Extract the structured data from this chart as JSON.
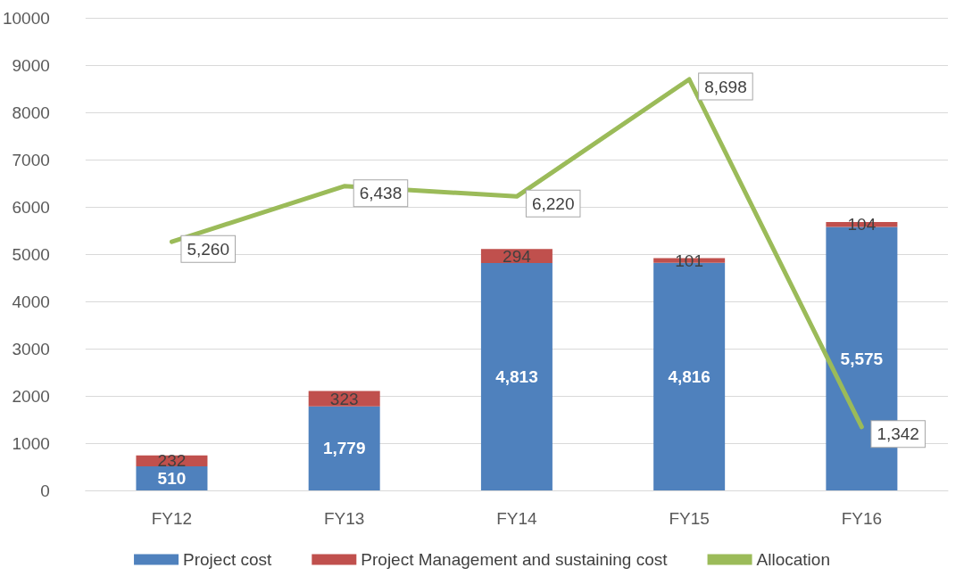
{
  "chart_data": {
    "type": "bar",
    "stacked": true,
    "categories": [
      "FY12",
      "FY13",
      "FY14",
      "FY15",
      "FY16"
    ],
    "series": [
      {
        "name": "Project cost",
        "color": "#4f81bd",
        "values": [
          510,
          1779,
          4813,
          4816,
          5575
        ],
        "value_labels": [
          "510",
          "1,779",
          "4,813",
          "4,816",
          "5,575"
        ]
      },
      {
        "name": "Project Management and sustaining cost",
        "color": "#c0504d",
        "values": [
          232,
          323,
          294,
          101,
          104
        ],
        "value_labels": [
          "232",
          "323",
          "294",
          "101",
          "104"
        ]
      },
      {
        "name": "Allocation",
        "type": "line",
        "color": "#9bbb59",
        "values": [
          5260,
          6438,
          6220,
          8698,
          1342
        ],
        "value_labels": [
          "5,260",
          "6,438",
          "6,220",
          "8,698",
          "1,342"
        ]
      }
    ],
    "ylim": [
      0,
      10000
    ],
    "yticks": [
      0,
      1000,
      2000,
      3000,
      4000,
      5000,
      6000,
      7000,
      8000,
      9000,
      10000
    ],
    "grid": "y",
    "legend": "bottom",
    "marker": "none",
    "line_style": "solid"
  }
}
